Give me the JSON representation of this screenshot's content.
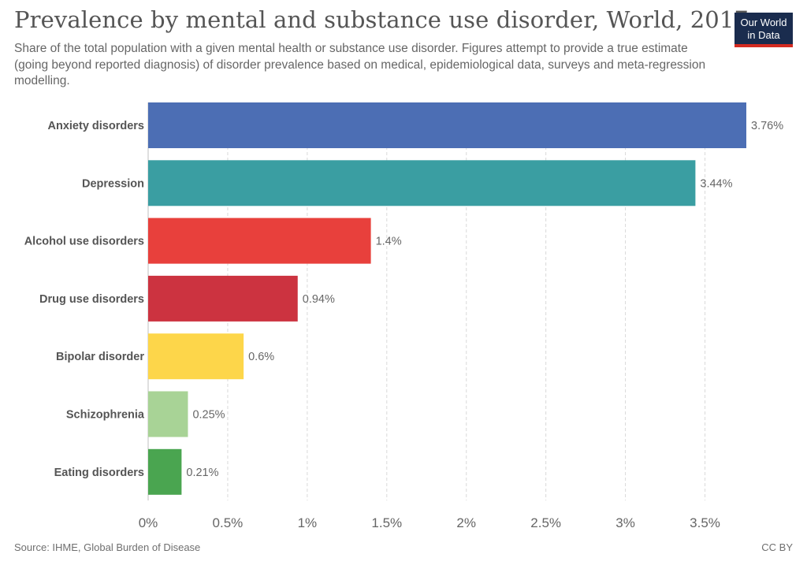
{
  "header": {
    "title": "Prevalence by mental and substance use disorder, World, 2017",
    "subtitle": "Share of the total population with a given mental health or substance use disorder. Figures attempt to provide a true estimate (going beyond reported diagnosis) of disorder prevalence based on medical, epidemiological data, surveys and meta-regression modelling."
  },
  "logo": {
    "line1": "Our World",
    "line2": "in Data",
    "bg_color": "#1a2c4e",
    "accent_color": "#d42b21"
  },
  "footer": {
    "source": "Source: IHME, Global Burden of Disease",
    "license": "CC BY"
  },
  "chart_data": {
    "type": "bar",
    "orientation": "horizontal",
    "title": "Prevalence by mental and substance use disorder, World, 2017",
    "xlim": [
      0,
      3.76
    ],
    "grid": "vertical dashed",
    "x_ticks": [
      {
        "value": 0,
        "label": "0%"
      },
      {
        "value": 0.5,
        "label": "0.5%"
      },
      {
        "value": 1,
        "label": "1%"
      },
      {
        "value": 1.5,
        "label": "1.5%"
      },
      {
        "value": 2,
        "label": "2%"
      },
      {
        "value": 2.5,
        "label": "2.5%"
      },
      {
        "value": 3,
        "label": "3%"
      },
      {
        "value": 3.5,
        "label": "3.5%"
      }
    ],
    "bars": [
      {
        "category": "Anxiety disorders",
        "value": 3.76,
        "label": "3.76%",
        "color": "#4c6eb4"
      },
      {
        "category": "Depression",
        "value": 3.44,
        "label": "3.44%",
        "color": "#3a9ea2"
      },
      {
        "category": "Alcohol use disorders",
        "value": 1.4,
        "label": "1.4%",
        "color": "#e8403c"
      },
      {
        "category": "Drug use disorders",
        "value": 0.94,
        "label": "0.94%",
        "color": "#cc3340"
      },
      {
        "category": "Bipolar disorder",
        "value": 0.6,
        "label": "0.6%",
        "color": "#fdd64a"
      },
      {
        "category": "Schizophrenia",
        "value": 0.25,
        "label": "0.25%",
        "color": "#a8d396"
      },
      {
        "category": "Eating disorders",
        "value": 0.21,
        "label": "0.21%",
        "color": "#4aa550"
      }
    ]
  }
}
